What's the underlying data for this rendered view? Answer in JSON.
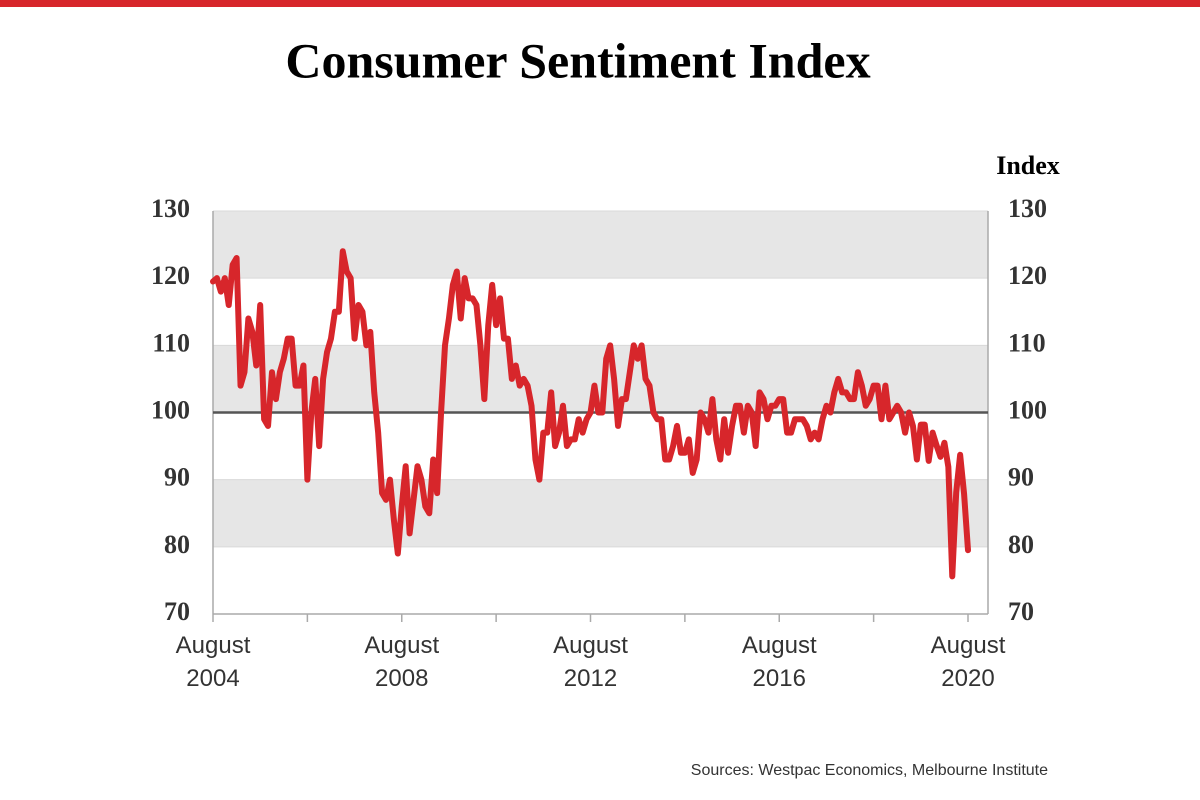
{
  "chart_data": {
    "type": "line",
    "title": "Consumer Sentiment Index",
    "ylabel": "Index",
    "source": "Sources: Westpac Economics, Melbourne Institute",
    "x": [
      "2004-08",
      "2004-09",
      "2004-10",
      "2004-11",
      "2004-12",
      "2005-01",
      "2005-02",
      "2005-03",
      "2005-04",
      "2005-05",
      "2005-06",
      "2005-07",
      "2005-08",
      "2005-09",
      "2005-10",
      "2005-11",
      "2005-12",
      "2006-01",
      "2006-02",
      "2006-03",
      "2006-04",
      "2006-05",
      "2006-06",
      "2006-07",
      "2006-08",
      "2006-09",
      "2006-10",
      "2006-11",
      "2006-12",
      "2007-01",
      "2007-02",
      "2007-03",
      "2007-04",
      "2007-05",
      "2007-06",
      "2007-07",
      "2007-08",
      "2007-09",
      "2007-10",
      "2007-11",
      "2007-12",
      "2008-01",
      "2008-02",
      "2008-03",
      "2008-04",
      "2008-05",
      "2008-06",
      "2008-07",
      "2008-08",
      "2008-09",
      "2008-10",
      "2008-11",
      "2008-12",
      "2009-01",
      "2009-02",
      "2009-03",
      "2009-04",
      "2009-05",
      "2009-06",
      "2009-07",
      "2009-08",
      "2009-09",
      "2009-10",
      "2009-11",
      "2009-12",
      "2010-01",
      "2010-02",
      "2010-03",
      "2010-04",
      "2010-05",
      "2010-06",
      "2010-07",
      "2010-08",
      "2010-09",
      "2010-10",
      "2010-11",
      "2010-12",
      "2011-01",
      "2011-02",
      "2011-03",
      "2011-04",
      "2011-05",
      "2011-06",
      "2011-07",
      "2011-08",
      "2011-09",
      "2011-10",
      "2011-11",
      "2011-12",
      "2012-01",
      "2012-02",
      "2012-03",
      "2012-04",
      "2012-05",
      "2012-06",
      "2012-07",
      "2012-08",
      "2012-09",
      "2012-10",
      "2012-11",
      "2012-12",
      "2013-01",
      "2013-02",
      "2013-03",
      "2013-04",
      "2013-05",
      "2013-06",
      "2013-07",
      "2013-08",
      "2013-09",
      "2013-10",
      "2013-11",
      "2013-12",
      "2014-01",
      "2014-02",
      "2014-03",
      "2014-04",
      "2014-05",
      "2014-06",
      "2014-07",
      "2014-08",
      "2014-09",
      "2014-10",
      "2014-11",
      "2014-12",
      "2015-01",
      "2015-02",
      "2015-03",
      "2015-04",
      "2015-05",
      "2015-06",
      "2015-07",
      "2015-08",
      "2015-09",
      "2015-10",
      "2015-11",
      "2015-12",
      "2016-01",
      "2016-02",
      "2016-03",
      "2016-04",
      "2016-05",
      "2016-06",
      "2016-07",
      "2016-08",
      "2016-09",
      "2016-10",
      "2016-11",
      "2016-12",
      "2017-01",
      "2017-02",
      "2017-03",
      "2017-04",
      "2017-05",
      "2017-06",
      "2017-07",
      "2017-08",
      "2017-09",
      "2017-10",
      "2017-11",
      "2017-12",
      "2018-01",
      "2018-02",
      "2018-03",
      "2018-04",
      "2018-05",
      "2018-06",
      "2018-07",
      "2018-08",
      "2018-09",
      "2018-10",
      "2018-11",
      "2018-12",
      "2019-01",
      "2019-02",
      "2019-03",
      "2019-04",
      "2019-05",
      "2019-06",
      "2019-07",
      "2019-08",
      "2019-09",
      "2019-10",
      "2019-11",
      "2019-12",
      "2020-01",
      "2020-02",
      "2020-03",
      "2020-04",
      "2020-05",
      "2020-06",
      "2020-07",
      "2020-08"
    ],
    "series": [
      {
        "name": "Consumer Sentiment Index",
        "color": "#d7262b",
        "values": [
          119.5,
          120,
          118,
          120,
          116,
          122,
          123,
          104,
          106,
          114,
          112,
          107,
          116,
          99,
          98,
          106,
          102,
          106,
          108,
          111,
          111,
          104,
          104,
          107,
          90,
          100,
          105,
          95,
          105,
          109,
          111,
          115,
          115,
          124,
          121,
          120,
          111,
          116,
          115,
          110,
          112,
          103,
          97,
          88,
          87,
          90,
          84,
          79,
          86,
          92,
          82,
          87,
          92,
          90,
          86,
          85,
          93,
          88,
          100,
          110,
          114,
          119,
          121,
          114,
          120,
          117,
          117,
          116,
          110,
          102,
          113,
          119,
          113,
          117,
          111,
          111,
          105,
          107,
          104,
          105,
          104,
          101,
          93,
          90,
          97,
          97,
          103,
          95,
          97,
          101,
          95,
          96,
          96,
          99,
          97,
          99,
          100,
          104,
          100,
          100,
          108,
          110,
          105,
          98,
          102,
          102,
          106,
          110,
          108,
          110,
          105,
          104,
          100,
          99,
          99,
          93,
          93,
          95,
          98,
          94,
          94,
          96,
          91,
          93,
          100,
          99,
          97,
          102,
          96,
          93,
          99,
          94,
          98,
          101,
          101,
          97,
          101,
          100,
          95,
          103,
          102,
          99,
          101,
          101,
          102,
          102,
          97,
          97,
          99,
          99,
          99,
          98,
          96,
          97,
          96,
          99,
          101,
          100,
          103,
          105,
          103,
          103,
          102,
          102,
          106,
          104,
          101,
          102,
          104,
          104,
          99,
          104,
          99,
          100,
          101,
          100,
          97,
          100,
          98,
          93,
          98.2,
          98.2,
          92.8,
          97,
          95.1,
          93.4,
          95.5,
          91.9,
          75.6,
          88.1,
          93.7,
          87.9,
          79.5
        ]
      }
    ],
    "xlim": [
      "2004-08",
      "2020-08"
    ],
    "xticks": [
      {
        "value": "2004-08",
        "label": "August 2004"
      },
      {
        "value": "2006-08",
        "label": null
      },
      {
        "value": "2008-08",
        "label": "August 2008"
      },
      {
        "value": "2010-08",
        "label": null
      },
      {
        "value": "2012-08",
        "label": "August 2012"
      },
      {
        "value": "2014-08",
        "label": null
      },
      {
        "value": "2016-08",
        "label": "August 2016"
      },
      {
        "value": "2018-08",
        "label": null
      },
      {
        "value": "2020-08",
        "label": "August 2020"
      }
    ],
    "ylim": [
      70,
      130
    ],
    "yticks": [
      70,
      80,
      90,
      100,
      110,
      120,
      130
    ],
    "reference_line": 100,
    "grid": "bands"
  }
}
